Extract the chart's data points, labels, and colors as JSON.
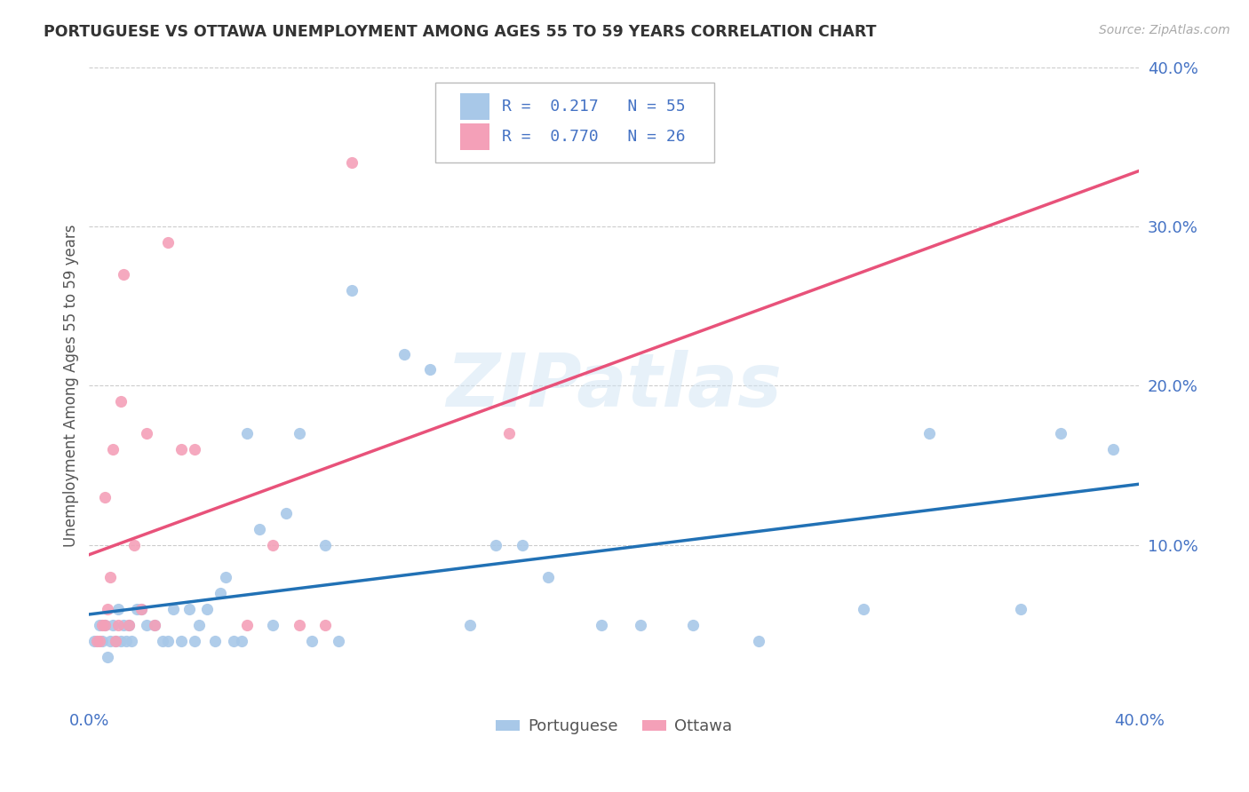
{
  "title": "PORTUGUESE VS OTTAWA UNEMPLOYMENT AMONG AGES 55 TO 59 YEARS CORRELATION CHART",
  "source": "Source: ZipAtlas.com",
  "ylabel": "Unemployment Among Ages 55 to 59 years",
  "xlim": [
    0.0,
    0.4
  ],
  "ylim": [
    0.0,
    0.4
  ],
  "watermark": "ZIPatlas",
  "blue_color": "#a8c8e8",
  "pink_color": "#f4a0b8",
  "blue_line_color": "#2171b5",
  "pink_line_color": "#e8527a",
  "R_blue": 0.217,
  "N_blue": 55,
  "R_pink": 0.77,
  "N_pink": 26,
  "portuguese_x": [
    0.002,
    0.004,
    0.005,
    0.006,
    0.007,
    0.008,
    0.009,
    0.01,
    0.011,
    0.012,
    0.013,
    0.014,
    0.015,
    0.016,
    0.018,
    0.02,
    0.022,
    0.025,
    0.028,
    0.03,
    0.032,
    0.035,
    0.038,
    0.04,
    0.042,
    0.045,
    0.048,
    0.05,
    0.052,
    0.055,
    0.058,
    0.06,
    0.065,
    0.07,
    0.075,
    0.08,
    0.085,
    0.09,
    0.095,
    0.1,
    0.12,
    0.13,
    0.145,
    0.155,
    0.165,
    0.175,
    0.195,
    0.21,
    0.23,
    0.255,
    0.295,
    0.32,
    0.355,
    0.37,
    0.39
  ],
  "portuguese_y": [
    0.04,
    0.05,
    0.04,
    0.05,
    0.03,
    0.04,
    0.05,
    0.04,
    0.06,
    0.04,
    0.05,
    0.04,
    0.05,
    0.04,
    0.06,
    0.06,
    0.05,
    0.05,
    0.04,
    0.04,
    0.06,
    0.04,
    0.06,
    0.04,
    0.05,
    0.06,
    0.04,
    0.07,
    0.08,
    0.04,
    0.04,
    0.17,
    0.11,
    0.05,
    0.12,
    0.17,
    0.04,
    0.1,
    0.04,
    0.26,
    0.22,
    0.21,
    0.05,
    0.1,
    0.1,
    0.08,
    0.05,
    0.05,
    0.05,
    0.04,
    0.06,
    0.17,
    0.06,
    0.17,
    0.16
  ],
  "ottawa_x": [
    0.003,
    0.004,
    0.005,
    0.006,
    0.006,
    0.007,
    0.008,
    0.009,
    0.01,
    0.011,
    0.012,
    0.013,
    0.015,
    0.017,
    0.02,
    0.022,
    0.025,
    0.03,
    0.035,
    0.04,
    0.06,
    0.07,
    0.08,
    0.09,
    0.1,
    0.16
  ],
  "ottawa_y": [
    0.04,
    0.04,
    0.05,
    0.13,
    0.05,
    0.06,
    0.08,
    0.16,
    0.04,
    0.05,
    0.19,
    0.27,
    0.05,
    0.1,
    0.06,
    0.17,
    0.05,
    0.29,
    0.16,
    0.16,
    0.05,
    0.1,
    0.05,
    0.05,
    0.34,
    0.17
  ]
}
